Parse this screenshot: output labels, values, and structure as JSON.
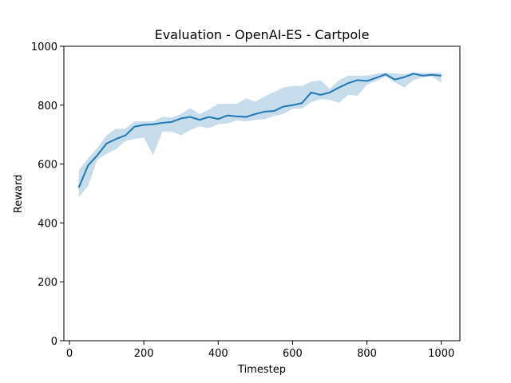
{
  "chart_data": {
    "type": "line",
    "title": "Evaluation - OpenAI-ES - Cartpole",
    "xlabel": "Timestep",
    "ylabel": "Reward",
    "xlim": [
      -15,
      1050
    ],
    "ylim": [
      0,
      1000
    ],
    "xticks": [
      0,
      200,
      400,
      600,
      800,
      1000
    ],
    "yticks": [
      0,
      200,
      400,
      600,
      800,
      1000
    ],
    "grid": false,
    "series": [
      {
        "color": "#1f77b4",
        "band_color": "#1f77b4",
        "x": [
          25,
          50,
          75,
          100,
          125,
          150,
          175,
          200,
          225,
          250,
          275,
          300,
          325,
          350,
          375,
          400,
          425,
          450,
          475,
          500,
          525,
          550,
          575,
          600,
          625,
          650,
          675,
          700,
          725,
          750,
          775,
          800,
          825,
          850,
          875,
          900,
          925,
          950,
          975,
          1000
        ],
        "y": [
          520,
          595,
          630,
          670,
          685,
          697,
          727,
          733,
          735,
          740,
          743,
          755,
          760,
          750,
          760,
          753,
          765,
          762,
          760,
          770,
          778,
          780,
          795,
          800,
          807,
          843,
          835,
          843,
          860,
          875,
          885,
          882,
          893,
          905,
          887,
          895,
          907,
          900,
          903,
          900
        ],
        "y_lower": [
          487,
          525,
          615,
          635,
          650,
          678,
          685,
          690,
          630,
          710,
          710,
          698,
          715,
          728,
          722,
          735,
          738,
          748,
          745,
          750,
          752,
          763,
          770,
          788,
          788,
          810,
          820,
          818,
          808,
          835,
          832,
          870,
          882,
          897,
          878,
          860,
          885,
          895,
          897,
          877
        ],
        "y_upper": [
          578,
          620,
          655,
          698,
          720,
          720,
          745,
          745,
          745,
          760,
          758,
          770,
          790,
          770,
          785,
          805,
          805,
          805,
          823,
          812,
          830,
          845,
          860,
          865,
          865,
          880,
          885,
          855,
          885,
          900,
          900,
          900,
          907,
          910,
          908,
          905,
          910,
          910,
          910,
          910
        ]
      }
    ]
  }
}
